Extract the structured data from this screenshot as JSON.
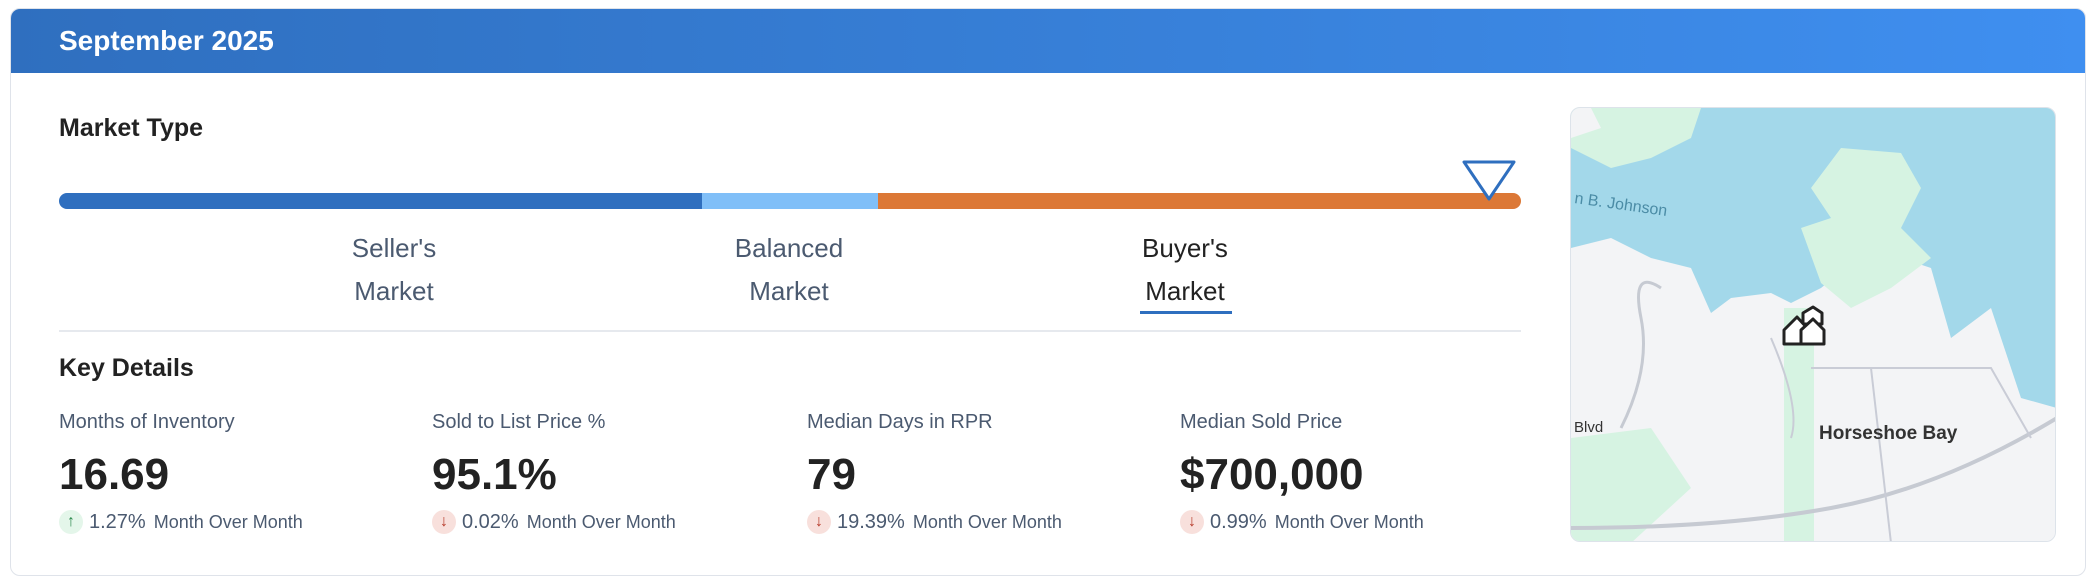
{
  "header": {
    "title": "September 2025"
  },
  "market_type": {
    "title": "Market Type",
    "segments": [
      {
        "label_line1": "Seller's",
        "label_line2": "Market",
        "color": "#2f6fbf"
      },
      {
        "label_line1": "Balanced",
        "label_line2": "Market",
        "color": "#80bff8"
      },
      {
        "label_line1": "Buyer's",
        "label_line2": "Market",
        "color": "#dc7836"
      }
    ],
    "active": "Buyer's Market",
    "indicator_position_percent": 97
  },
  "key_details": {
    "title": "Key Details",
    "items": [
      {
        "label": "Months of Inventory",
        "value": "16.69",
        "direction": "up",
        "change": "1.27%",
        "period": "Month Over Month"
      },
      {
        "label": "Sold to List Price %",
        "value": "95.1%",
        "direction": "down",
        "change": "0.02%",
        "period": "Month Over Month"
      },
      {
        "label": "Median Days in RPR",
        "value": "79",
        "direction": "down",
        "change": "19.39%",
        "period": "Month Over Month"
      },
      {
        "label": "Median Sold Price",
        "value": "$700,000",
        "direction": "down",
        "change": "0.99%",
        "period": "Month Over Month"
      }
    ]
  },
  "map": {
    "labels": [
      "n B. Johnson",
      "Blvd",
      "Horseshoe Bay"
    ],
    "marker_icon": "homes-cluster-icon"
  },
  "colors": {
    "up": "#2d8a4e",
    "down": "#b73a2a",
    "accent": "#2f6fbf"
  }
}
